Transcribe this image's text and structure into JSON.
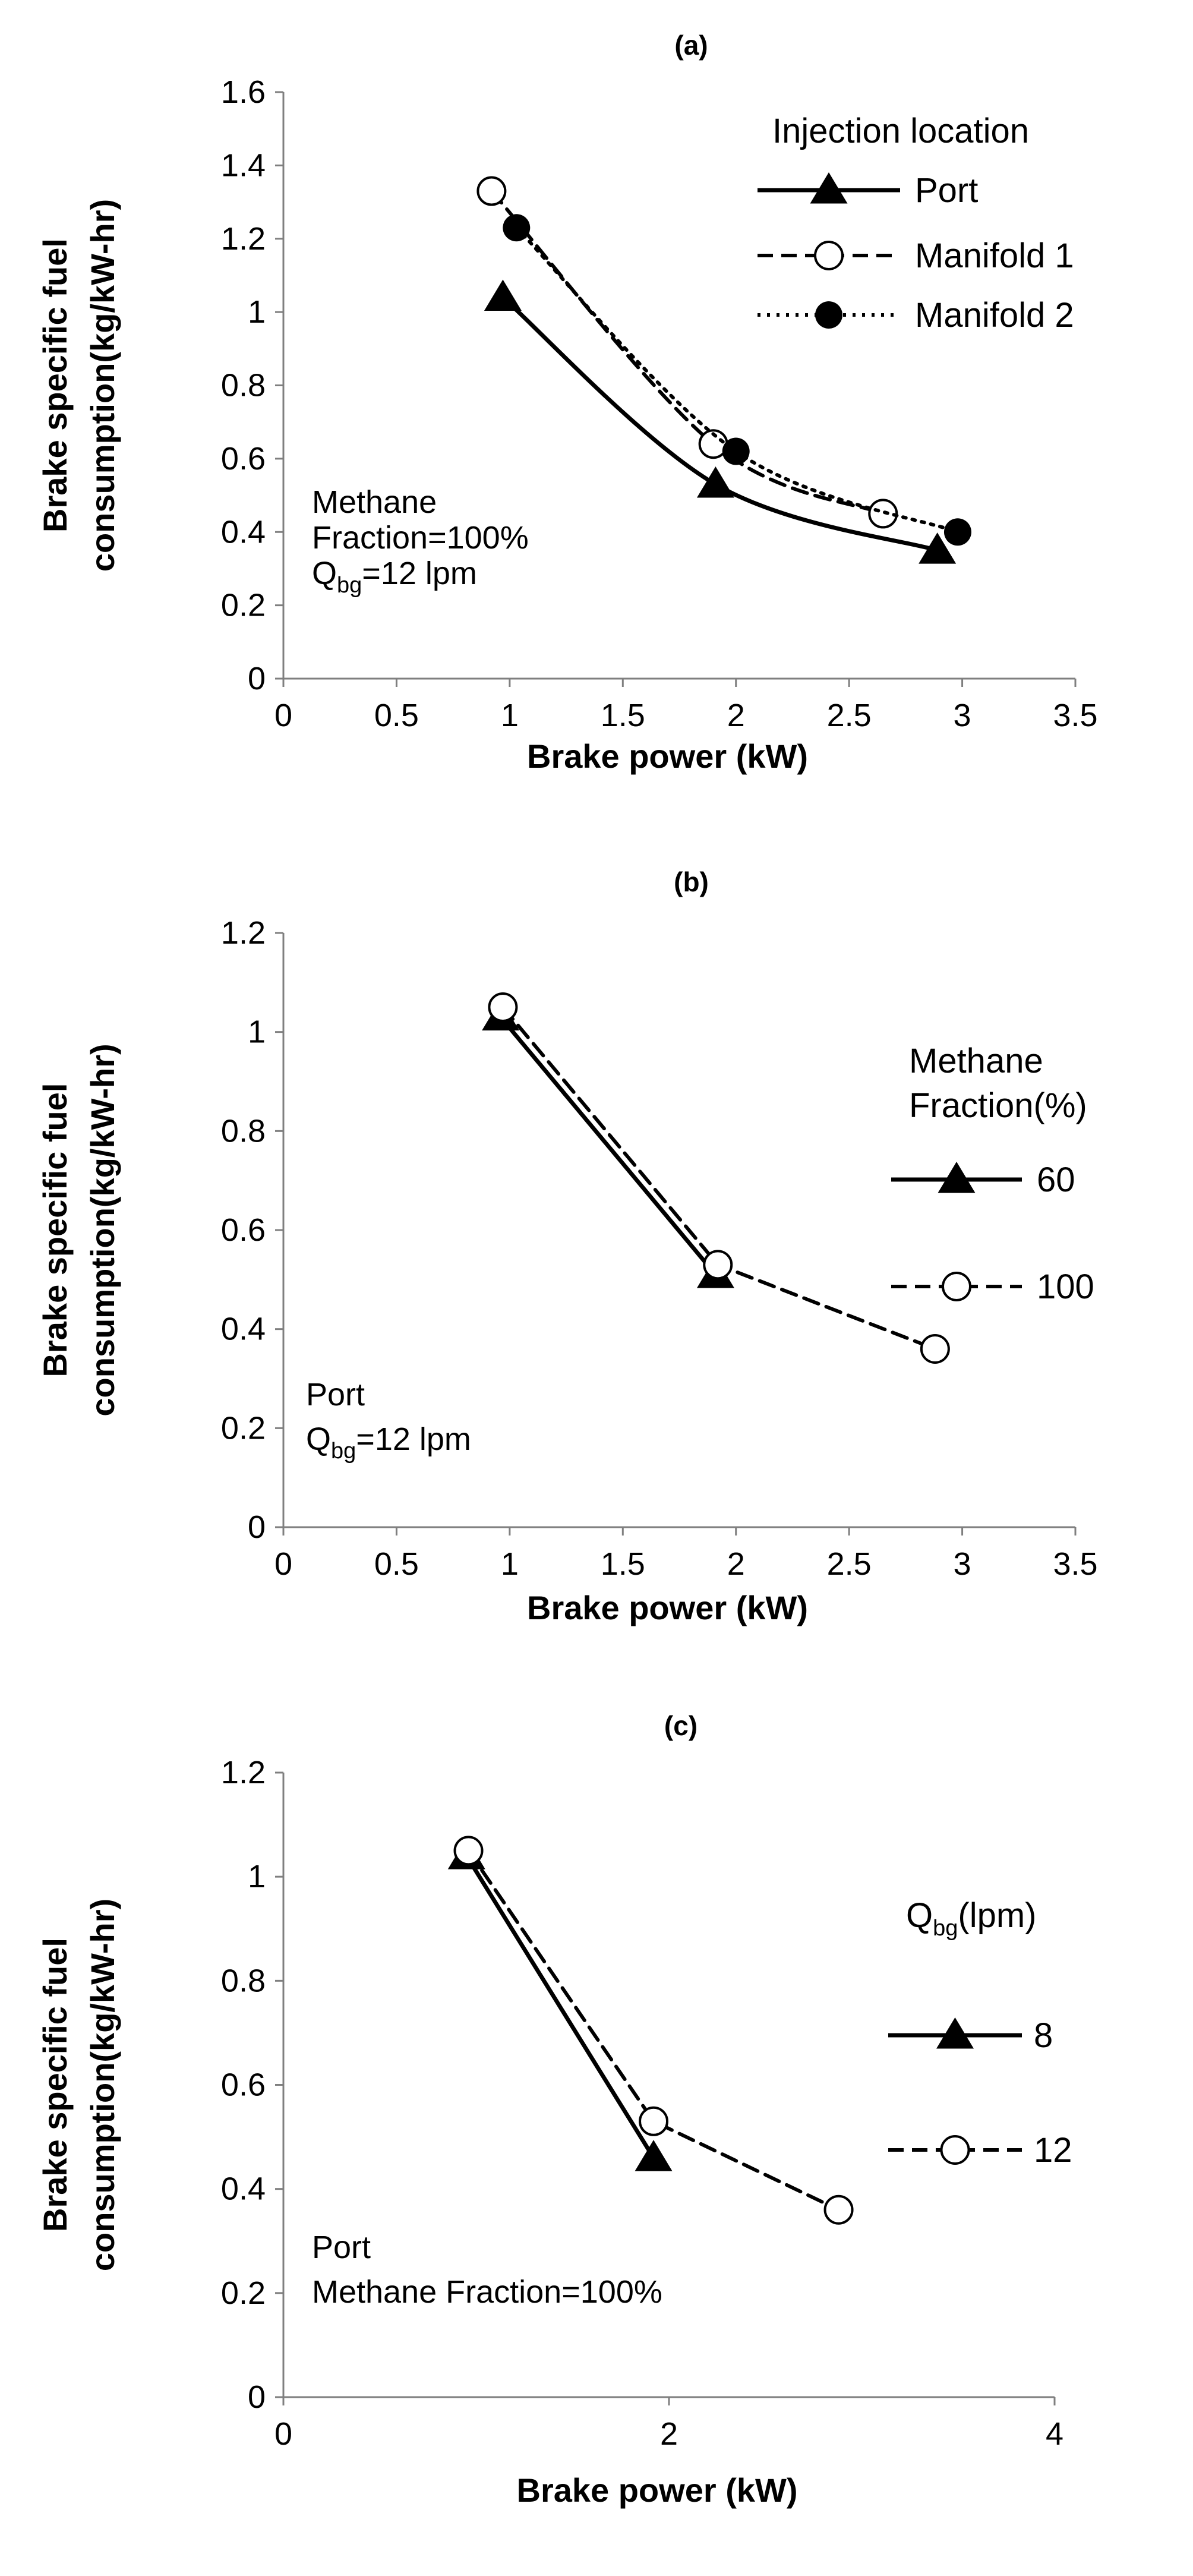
{
  "chart_data": [
    {
      "type": "line",
      "panel": "a",
      "title": "(a)",
      "xlabel": "Brake power (kW)",
      "ylabel_lines": [
        "Brake specific fuel",
        "consumption(kg/kW-hr)"
      ],
      "xlim": [
        0,
        3.5
      ],
      "ylim": [
        0,
        1.6
      ],
      "xticks": [
        0,
        0.5,
        1,
        1.5,
        2,
        2.5,
        3,
        3.5
      ],
      "xtick_labels": [
        "0",
        "0.5",
        "1",
        "1.5",
        "2",
        "2.5",
        "3",
        "3.5"
      ],
      "yticks": [
        0,
        0.2,
        0.4,
        0.6,
        0.8,
        1,
        1.2,
        1.4,
        1.6
      ],
      "ytick_labels": [
        "0",
        "0.2",
        "0.4",
        "0.6",
        "0.8",
        "1",
        "1.2",
        "1.4",
        "1.6"
      ],
      "grid": false,
      "legend_title_lines": [
        "Injection location"
      ],
      "annotation_lines": [
        {
          "text": "Methane"
        },
        {
          "text": "Fraction=100%"
        },
        {
          "text": "Q",
          "sub": "bg",
          "after": "=12 lpm"
        }
      ],
      "series": [
        {
          "name": "Port",
          "style": "solid",
          "marker": "triangle",
          "x": [
            0.97,
            1.91,
            2.89
          ],
          "y": [
            1.04,
            0.53,
            0.35
          ]
        },
        {
          "name": "Manifold 1",
          "style": "dashed",
          "marker": "circle-open",
          "x": [
            0.92,
            1.9,
            2.65
          ],
          "y": [
            1.33,
            0.64,
            0.45
          ]
        },
        {
          "name": "Manifold 2",
          "style": "dotted",
          "marker": "circle-filled",
          "x": [
            1.03,
            2.0,
            2.98
          ],
          "y": [
            1.23,
            0.62,
            0.4
          ]
        }
      ]
    },
    {
      "type": "line",
      "panel": "b",
      "title": "(b)",
      "xlabel": "Brake power (kW)",
      "ylabel_lines": [
        "Brake specific fuel",
        "consumption(kg/kW-hr)"
      ],
      "xlim": [
        0,
        3.5
      ],
      "ylim": [
        0,
        1.2
      ],
      "xticks": [
        0,
        0.5,
        1,
        1.5,
        2,
        2.5,
        3,
        3.5
      ],
      "xtick_labels": [
        "0",
        "0.5",
        "1",
        "1.5",
        "2",
        "2.5",
        "3",
        "3.5"
      ],
      "yticks": [
        0,
        0.2,
        0.4,
        0.6,
        0.8,
        1,
        1.2
      ],
      "ytick_labels": [
        "0",
        "0.2",
        "0.4",
        "0.6",
        "0.8",
        "1",
        "1.2"
      ],
      "grid": false,
      "legend_title_lines": [
        "Methane",
        "Fraction(%)"
      ],
      "annotation_lines": [
        {
          "text": "Port"
        },
        {
          "text": "Q",
          "sub": "bg",
          "after": "=12 lpm"
        }
      ],
      "series": [
        {
          "name": "60",
          "style": "solid",
          "marker": "triangle",
          "x": [
            0.96,
            1.91
          ],
          "y": [
            1.03,
            0.51
          ]
        },
        {
          "name": "100",
          "style": "dashed",
          "marker": "circle-open",
          "x": [
            0.97,
            1.92,
            2.88
          ],
          "y": [
            1.05,
            0.53,
            0.36
          ]
        }
      ]
    },
    {
      "type": "line",
      "panel": "c",
      "title": "(c)",
      "xlabel": "Brake power (kW)",
      "ylabel_lines": [
        "Brake specific fuel",
        "consumption(kg/kW-hr)"
      ],
      "xlim": [
        0,
        4
      ],
      "ylim": [
        0,
        1.2
      ],
      "xticks": [
        0,
        2,
        4
      ],
      "xtick_labels": [
        "0",
        "2",
        "4"
      ],
      "yticks": [
        0,
        0.2,
        0.4,
        0.6,
        0.8,
        1,
        1.2
      ],
      "ytick_labels": [
        "0",
        "0.2",
        "0.4",
        "0.6",
        "0.8",
        "1",
        "1.2"
      ],
      "grid": false,
      "legend_title_lines": [],
      "legend_title_rich": {
        "text": "Q",
        "sub": "bg",
        "after": "(lpm)"
      },
      "annotation_lines": [
        {
          "text": "Port"
        },
        {
          "text": "Methane Fraction=100%"
        }
      ],
      "series": [
        {
          "name": "8",
          "style": "solid",
          "marker": "triangle",
          "x": [
            0.95,
            1.92
          ],
          "y": [
            1.04,
            0.46
          ]
        },
        {
          "name": "12",
          "style": "dashed",
          "marker": "circle-open",
          "x": [
            0.96,
            1.92,
            2.88
          ],
          "y": [
            1.05,
            0.53,
            0.36
          ]
        }
      ]
    }
  ]
}
